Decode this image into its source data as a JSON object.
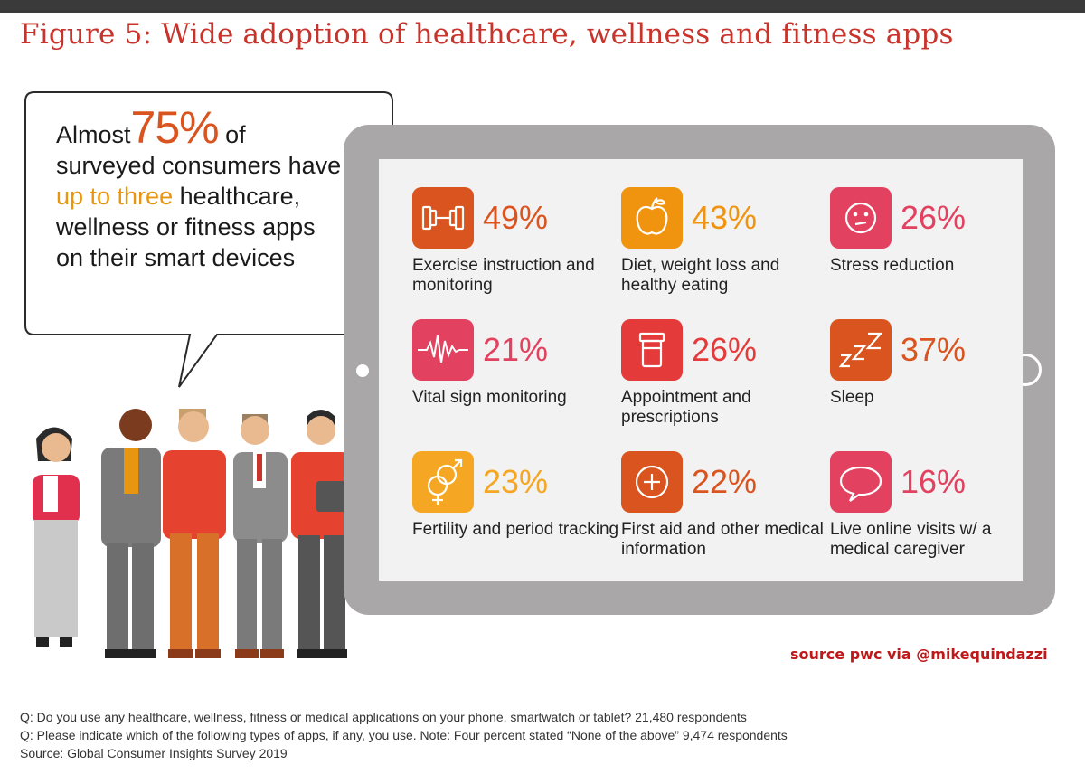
{
  "title": "Figure 5: Wide adoption of healthcare, wellness and fitness apps",
  "callout": {
    "prefix": "Almost",
    "big": "75%",
    "after_big": " of",
    "line2": "surveyed consumers have",
    "highlight": "up to three",
    "line3_rest": " healthcare,",
    "line4": "wellness or fitness apps",
    "line5": "on their smart devices",
    "accent": "#d9541e",
    "highlight_color": "#e8960f"
  },
  "apps": [
    {
      "icon": "dumbbell-icon",
      "value": "49%",
      "label": "Exercise instruction and monitoring",
      "color": "#d9541e"
    },
    {
      "icon": "apple-icon",
      "value": "43%",
      "label": "Diet, weight loss and healthy eating",
      "color": "#f0940f"
    },
    {
      "icon": "stress-face-icon",
      "value": "26%",
      "label": "Stress reduction",
      "color": "#e2415f"
    },
    {
      "icon": "heartbeat-icon",
      "value": "21%",
      "label": "Vital sign monitoring",
      "color": "#e2415f"
    },
    {
      "icon": "pill-bottle-icon",
      "value": "26%",
      "label": "Appointment and prescriptions",
      "color": "#e43a3a"
    },
    {
      "icon": "sleep-zzz-icon",
      "value": "37%",
      "label": "Sleep",
      "color": "#d9541e"
    },
    {
      "icon": "gender-symbols-icon",
      "value": "23%",
      "label": "Fertility and period tracking",
      "color": "#f5a623"
    },
    {
      "icon": "first-aid-icon",
      "value": "22%",
      "label": "First aid and other medical information",
      "color": "#d9541e"
    },
    {
      "icon": "speech-bubble-icon",
      "value": "16%",
      "label": "Live online visits w/ a medical caregiver",
      "color": "#e2415f"
    }
  ],
  "source_credit": "source pwc via @mikequindazzi",
  "footnotes": [
    "Q: Do you use any healthcare, wellness, fitness or medical applications on your phone, smartwatch or tablet? 21,480 respondents",
    "Q: Please indicate which of the following types of apps, if any, you use. Note: Four percent stated “None of the above” 9,474 respondents",
    "Source: Global Consumer Insights Survey 2019"
  ]
}
